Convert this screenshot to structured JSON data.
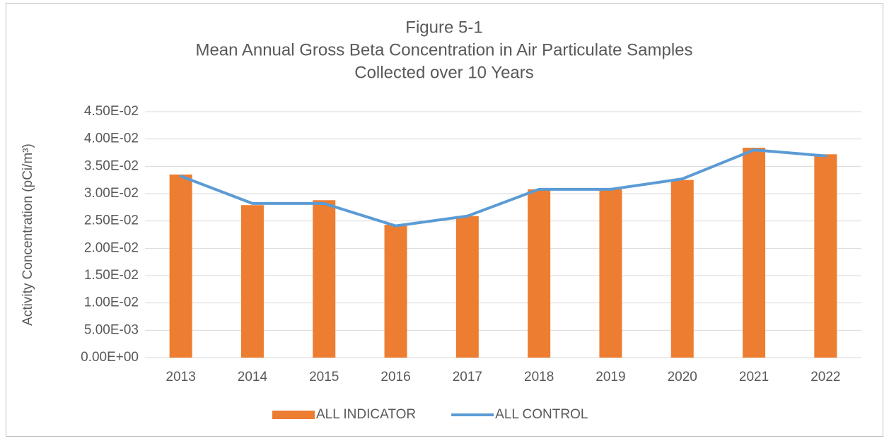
{
  "chart_data": {
    "type": "bar",
    "title": [
      "Figure 5-1",
      "Mean Annual Gross Beta Concentration in Air Particulate Samples",
      "Collected over 10 Years"
    ],
    "y_label": "Activity Concentration (pCi/m³)",
    "categories": [
      "2013",
      "2014",
      "2015",
      "2016",
      "2017",
      "2018",
      "2019",
      "2020",
      "2021",
      "2022"
    ],
    "series": [
      {
        "name": "ALL INDICATOR",
        "type": "bar",
        "color": "#ed7d31",
        "values": [
          0.0335,
          0.0279,
          0.0288,
          0.0243,
          0.0259,
          0.0308,
          0.0308,
          0.0325,
          0.0384,
          0.0372
        ]
      },
      {
        "name": "ALL CONTROL",
        "type": "line",
        "color": "#5b9bd5",
        "values": [
          0.0332,
          0.0282,
          0.0282,
          0.0241,
          0.0259,
          0.0308,
          0.0308,
          0.0327,
          0.038,
          0.0369
        ]
      }
    ],
    "ylim": [
      0,
      0.045
    ],
    "yticks": [
      {
        "value": 0,
        "label": "0.00E+00"
      },
      {
        "value": 0.005,
        "label": "5.00E-03"
      },
      {
        "value": 0.01,
        "label": "1.00E-02"
      },
      {
        "value": 0.015,
        "label": "1.50E-02"
      },
      {
        "value": 0.02,
        "label": "2.00E-02"
      },
      {
        "value": 0.025,
        "label": "2.50E-02"
      },
      {
        "value": 0.03,
        "label": "3.00E-02"
      },
      {
        "value": 0.035,
        "label": "3.50E-02"
      },
      {
        "value": 0.04,
        "label": "4.00E-02"
      },
      {
        "value": 0.045,
        "label": "4.50E-02"
      }
    ],
    "grid": true,
    "legend": "bottom"
  }
}
